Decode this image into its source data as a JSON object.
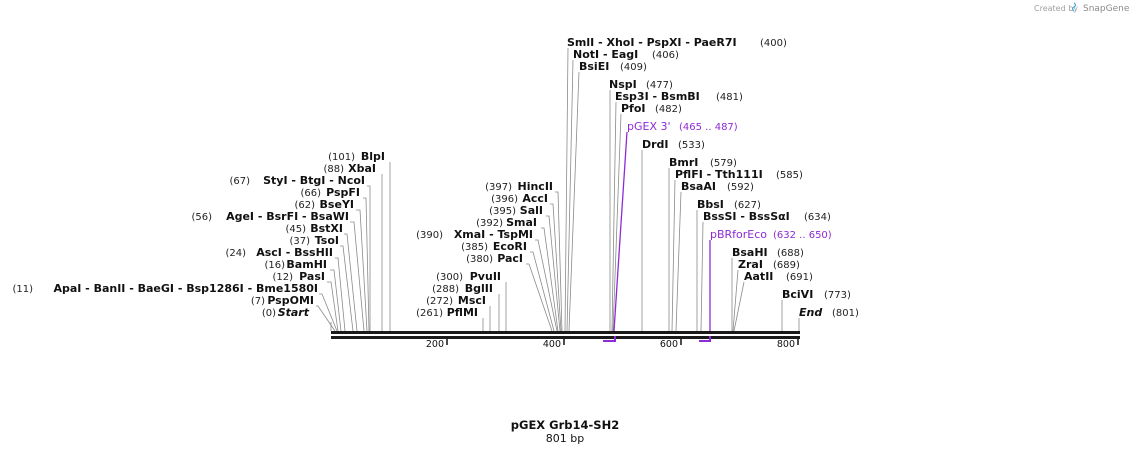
{
  "branding": {
    "created_by": "Created by",
    "name": "SnapGene",
    "color": "#4aa7d8"
  },
  "map": {
    "title": "pGEX Grb14-SH2",
    "length_text": "801 bp",
    "length_bp": 801,
    "ticks": [
      {
        "value": 200,
        "label": "200"
      },
      {
        "value": 400,
        "label": "400"
      },
      {
        "value": 600,
        "label": "600"
      },
      {
        "value": 800,
        "label": "800"
      }
    ],
    "start_label": {
      "name": "Start",
      "pos": "(0)"
    },
    "end_label": {
      "name": "End",
      "pos": "(801)"
    },
    "left_labels": [
      {
        "name": "BlpI",
        "pos": "(101)",
        "bp": 101
      },
      {
        "name": "XbaI",
        "pos": "(88)",
        "bp": 88
      },
      {
        "name": "StyI   - BtgI   - NcoI",
        "pos": "(67)",
        "bp": 67
      },
      {
        "name": "PspFI",
        "pos": "(66)",
        "bp": 66
      },
      {
        "name": "BseYI",
        "pos": "(62)",
        "bp": 62
      },
      {
        "name": "AgeI   - BsrFI   - BsaWI",
        "pos": "(56)",
        "bp": 56
      },
      {
        "name": "BstXI",
        "pos": "(45)",
        "bp": 45
      },
      {
        "name": "TsoI",
        "pos": "(37)",
        "bp": 37
      },
      {
        "name": "AscI   - BssHII",
        "pos": "(24)",
        "bp": 24
      },
      {
        "name": "BamHI",
        "pos": "(16)",
        "bp": 16
      },
      {
        "name": "PasI",
        "pos": "(12)",
        "bp": 12
      },
      {
        "name": "ApaI   - BanII   - BaeGI   - Bsp1286I   - Bme1580I",
        "pos": "(11)",
        "bp": 11
      },
      {
        "name": "PspOMI",
        "pos": "(7)",
        "bp": 7
      },
      {
        "name": "HincII",
        "pos": "(397)",
        "bp": 397
      },
      {
        "name": "AccI",
        "pos": "(396)",
        "bp": 396
      },
      {
        "name": "SalI",
        "pos": "(395)",
        "bp": 395
      },
      {
        "name": "SmaI",
        "pos": "(392)",
        "bp": 392
      },
      {
        "name": "XmaI   - TspMI",
        "pos": "(390)",
        "bp": 390
      },
      {
        "name": "EcoRI",
        "pos": "(385)",
        "bp": 385
      },
      {
        "name": "PacI",
        "pos": "(380)",
        "bp": 380
      },
      {
        "name": "PvuII",
        "pos": "(300)",
        "bp": 300
      },
      {
        "name": "BglII",
        "pos": "(288)",
        "bp": 288
      },
      {
        "name": "MscI",
        "pos": "(272)",
        "bp": 272
      },
      {
        "name": "PflMI",
        "pos": "(261)",
        "bp": 261
      }
    ],
    "right_labels": [
      {
        "name": "SmlI   - XhoI   - PspXI   - PaeR7I",
        "pos": "(400)",
        "bp": 400
      },
      {
        "name": "NotI   - EagI",
        "pos": "(406)",
        "bp": 406
      },
      {
        "name": "BsiEI",
        "pos": "(409)",
        "bp": 409
      },
      {
        "name": "NspI",
        "pos": "(477)",
        "bp": 477
      },
      {
        "name": "Esp3I   - BsmBI",
        "pos": "(481)",
        "bp": 481
      },
      {
        "name": "PfoI",
        "pos": "(482)",
        "bp": 482
      },
      {
        "name": "DrdI",
        "pos": "(533)",
        "bp": 533
      },
      {
        "name": "BmrI",
        "pos": "(579)",
        "bp": 579
      },
      {
        "name": "PflFI   - Tth111I",
        "pos": "(585)",
        "bp": 585
      },
      {
        "name": "BsaAI",
        "pos": "(592)",
        "bp": 592
      },
      {
        "name": "BbsI",
        "pos": "(627)",
        "bp": 627
      },
      {
        "name": "BssSI   - BssSαI",
        "pos": "(634)",
        "bp": 634
      },
      {
        "name": "BsaHI",
        "pos": "(688)",
        "bp": 688
      },
      {
        "name": "ZraI",
        "pos": "(689)",
        "bp": 689
      },
      {
        "name": "AatII",
        "pos": "(691)",
        "bp": 691
      },
      {
        "name": "BciVI",
        "pos": "(773)",
        "bp": 773
      }
    ],
    "features": [
      {
        "name": "pGEX 3'",
        "range": "(465 .. 487)",
        "start": 465,
        "end": 487,
        "color": "#8e2ad6"
      },
      {
        "name": "pBRforEco",
        "range": "(632 .. 650)",
        "start": 632,
        "end": 650,
        "color": "#8e2ad6"
      }
    ]
  }
}
